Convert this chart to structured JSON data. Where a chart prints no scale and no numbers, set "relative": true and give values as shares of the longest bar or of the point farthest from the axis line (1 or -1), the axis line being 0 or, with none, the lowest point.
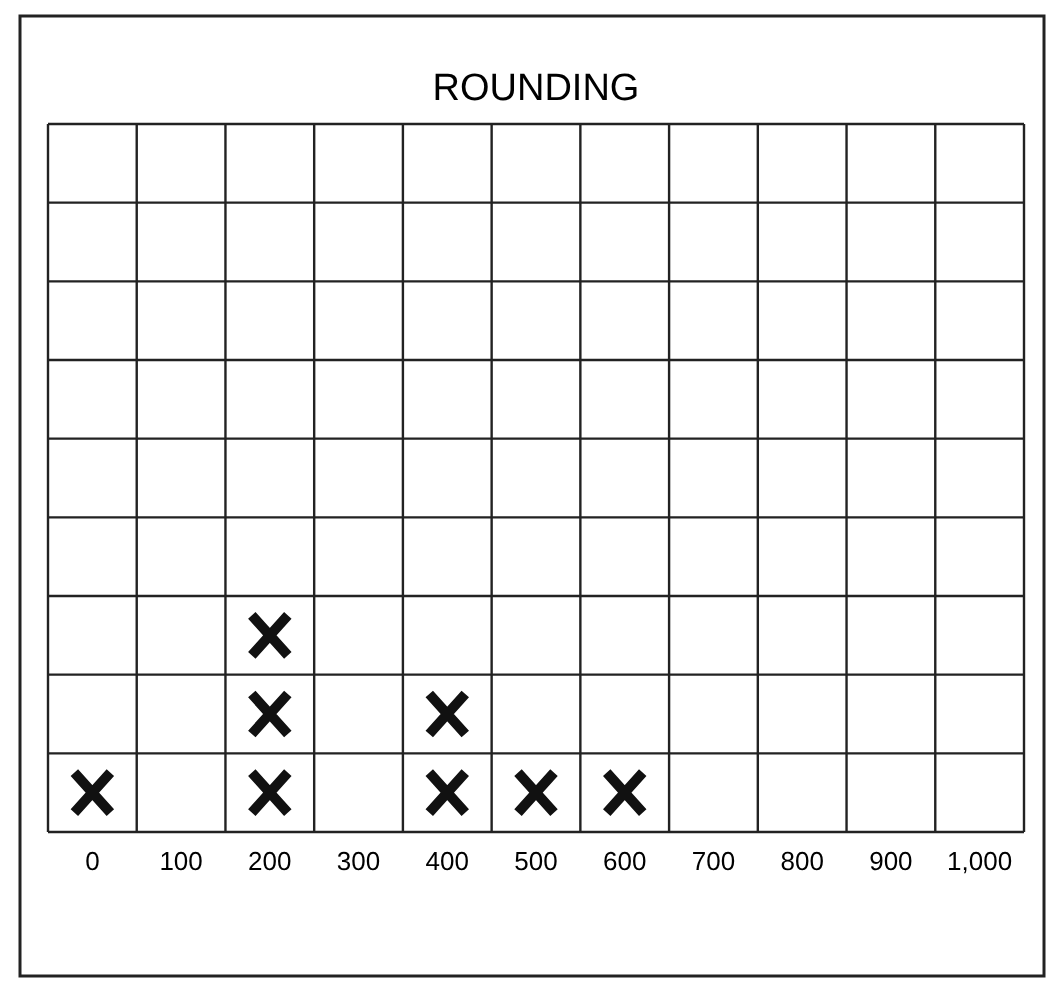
{
  "chart_data": {
    "type": "scatter",
    "title": "ROUNDING",
    "categories": [
      "0",
      "100",
      "200",
      "300",
      "400",
      "500",
      "600",
      "700",
      "800",
      "900",
      "1,000"
    ],
    "series": [
      {
        "color": "#111111",
        "x": [
          "0",
          "200",
          "200",
          "200",
          "400",
          "400",
          "500",
          "600"
        ],
        "values": [
          0.2,
          0.2,
          0.6,
          1,
          0.2,
          0.6,
          0.2,
          0.2
        ]
      }
    ],
    "relative": true,
    "grid": true,
    "tick_labels": "x",
    "marker": "cross"
  }
}
